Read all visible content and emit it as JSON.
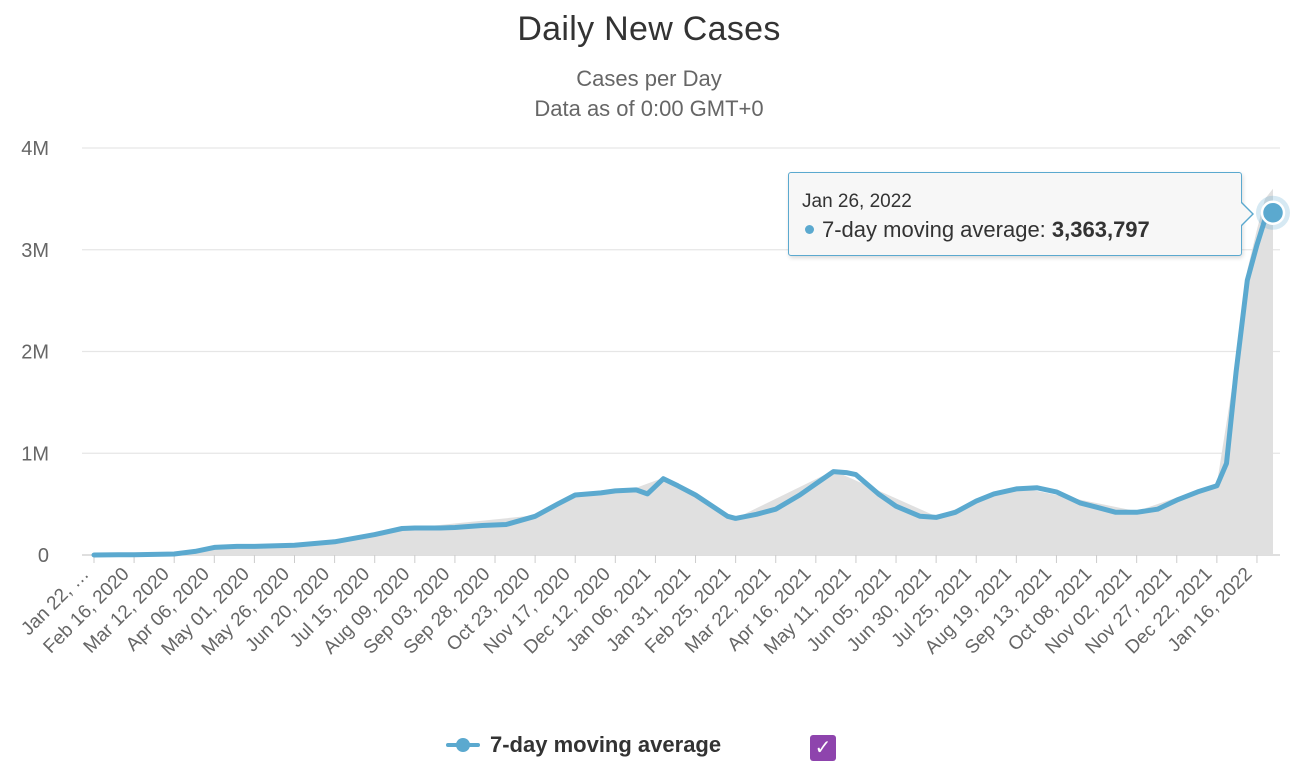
{
  "chart_data": {
    "type": "line",
    "title": "Daily New Cases",
    "subtitle": "Cases per Day",
    "subtitle2": "Data as of 0:00 GMT+0",
    "xlabel": "",
    "ylabel": "",
    "ylim": [
      0,
      4000000
    ],
    "y_ticks": [
      {
        "value": 0,
        "label": "0"
      },
      {
        "value": 1000000,
        "label": "1M"
      },
      {
        "value": 2000000,
        "label": "2M"
      },
      {
        "value": 3000000,
        "label": "3M"
      },
      {
        "value": 4000000,
        "label": "4M"
      }
    ],
    "x_start": "2020-01-22",
    "x_end": "2022-01-26",
    "x_tick_labels": [
      "Jan 22, …",
      "Feb 16, 2020",
      "Mar 12, 2020",
      "Apr 06, 2020",
      "May 01, 2020",
      "May 26, 2020",
      "Jun 20, 2020",
      "Jul 15, 2020",
      "Aug 09, 2020",
      "Sep 03, 2020",
      "Sep 28, 2020",
      "Oct 23, 2020",
      "Nov 17, 2020",
      "Dec 12, 2020",
      "Jan 06, 2021",
      "Jan 31, 2021",
      "Feb 25, 2021",
      "Mar 22, 2021",
      "Apr 16, 2021",
      "May 11, 2021",
      "Jun 05, 2021",
      "Jun 30, 2021",
      "Jul 25, 2021",
      "Aug 19, 2021",
      "Sep 13, 2021",
      "Oct 08, 2021",
      "Nov 02, 2021",
      "Nov 27, 2021",
      "Dec 22, 2021",
      "Jan 16, 2022"
    ],
    "x_tick_dates": [
      "2020-01-22",
      "2020-02-16",
      "2020-03-12",
      "2020-04-06",
      "2020-05-01",
      "2020-05-26",
      "2020-06-20",
      "2020-07-15",
      "2020-08-09",
      "2020-09-03",
      "2020-09-28",
      "2020-10-23",
      "2020-11-17",
      "2020-12-12",
      "2021-01-06",
      "2021-01-31",
      "2021-02-25",
      "2021-03-22",
      "2021-04-16",
      "2021-05-11",
      "2021-06-05",
      "2021-06-30",
      "2021-07-25",
      "2021-08-19",
      "2021-09-13",
      "2021-10-08",
      "2021-11-02",
      "2021-11-27",
      "2021-12-22",
      "2022-01-16"
    ],
    "series": [
      {
        "name": "7-day moving average",
        "color": "#5ba9cf",
        "points": [
          [
            "2020-01-22",
            0
          ],
          [
            "2020-02-06",
            2000
          ],
          [
            "2020-02-16",
            3000
          ],
          [
            "2020-03-12",
            10000
          ],
          [
            "2020-03-25",
            35000
          ],
          [
            "2020-04-06",
            75000
          ],
          [
            "2020-04-20",
            85000
          ],
          [
            "2020-05-01",
            85000
          ],
          [
            "2020-05-26",
            95000
          ],
          [
            "2020-06-20",
            130000
          ],
          [
            "2020-07-15",
            200000
          ],
          [
            "2020-08-01",
            260000
          ],
          [
            "2020-08-09",
            265000
          ],
          [
            "2020-08-25",
            265000
          ],
          [
            "2020-09-03",
            270000
          ],
          [
            "2020-09-20",
            290000
          ],
          [
            "2020-10-05",
            300000
          ],
          [
            "2020-10-23",
            380000
          ],
          [
            "2020-11-06",
            500000
          ],
          [
            "2020-11-17",
            590000
          ],
          [
            "2020-12-03",
            610000
          ],
          [
            "2020-12-12",
            630000
          ],
          [
            "2020-12-25",
            640000
          ],
          [
            "2021-01-01",
            600000
          ],
          [
            "2021-01-11",
            750000
          ],
          [
            "2021-01-20",
            680000
          ],
          [
            "2021-01-31",
            590000
          ],
          [
            "2021-02-20",
            380000
          ],
          [
            "2021-02-25",
            360000
          ],
          [
            "2021-03-10",
            400000
          ],
          [
            "2021-03-22",
            450000
          ],
          [
            "2021-04-06",
            590000
          ],
          [
            "2021-04-16",
            700000
          ],
          [
            "2021-04-27",
            820000
          ],
          [
            "2021-05-05",
            810000
          ],
          [
            "2021-05-11",
            790000
          ],
          [
            "2021-05-25",
            600000
          ],
          [
            "2021-06-05",
            480000
          ],
          [
            "2021-06-20",
            380000
          ],
          [
            "2021-06-30",
            370000
          ],
          [
            "2021-07-12",
            420000
          ],
          [
            "2021-07-25",
            530000
          ],
          [
            "2021-08-05",
            600000
          ],
          [
            "2021-08-19",
            650000
          ],
          [
            "2021-09-01",
            660000
          ],
          [
            "2021-09-13",
            620000
          ],
          [
            "2021-09-28",
            510000
          ],
          [
            "2021-10-08",
            470000
          ],
          [
            "2021-10-20",
            420000
          ],
          [
            "2021-11-02",
            420000
          ],
          [
            "2021-11-15",
            450000
          ],
          [
            "2021-11-27",
            540000
          ],
          [
            "2021-12-10",
            620000
          ],
          [
            "2021-12-22",
            680000
          ],
          [
            "2021-12-28",
            900000
          ],
          [
            "2022-01-03",
            1800000
          ],
          [
            "2022-01-10",
            2700000
          ],
          [
            "2022-01-16",
            3050000
          ],
          [
            "2022-01-21",
            3300000
          ],
          [
            "2022-01-26",
            3363797
          ]
        ]
      }
    ],
    "daily_cases_area": {
      "color": "#e0e0e0",
      "points": [
        [
          "2020-01-22",
          0
        ],
        [
          "2020-03-12",
          15000
        ],
        [
          "2020-04-06",
          80000
        ],
        [
          "2020-06-20",
          135000
        ],
        [
          "2020-08-09",
          270000
        ],
        [
          "2020-10-23",
          390000
        ],
        [
          "2020-11-17",
          600000
        ],
        [
          "2020-12-25",
          660000
        ],
        [
          "2021-01-11",
          760000
        ],
        [
          "2021-02-25",
          360000
        ],
        [
          "2021-04-27",
          830000
        ],
        [
          "2021-06-30",
          380000
        ],
        [
          "2021-08-19",
          670000
        ],
        [
          "2021-11-02",
          430000
        ],
        [
          "2021-12-22",
          700000
        ],
        [
          "2022-01-03",
          1900000
        ],
        [
          "2022-01-10",
          2800000
        ],
        [
          "2022-01-16",
          3200000
        ],
        [
          "2022-01-21",
          3500000
        ],
        [
          "2022-01-26",
          3600000
        ]
      ]
    },
    "tooltip": {
      "date": "Jan 26, 2022",
      "label": "7-day moving average: ",
      "value": "3,363,797"
    },
    "legend": {
      "label": "7-day moving average",
      "placement": "bottom-center",
      "checkbox_mark": "✓"
    },
    "grid": true
  }
}
